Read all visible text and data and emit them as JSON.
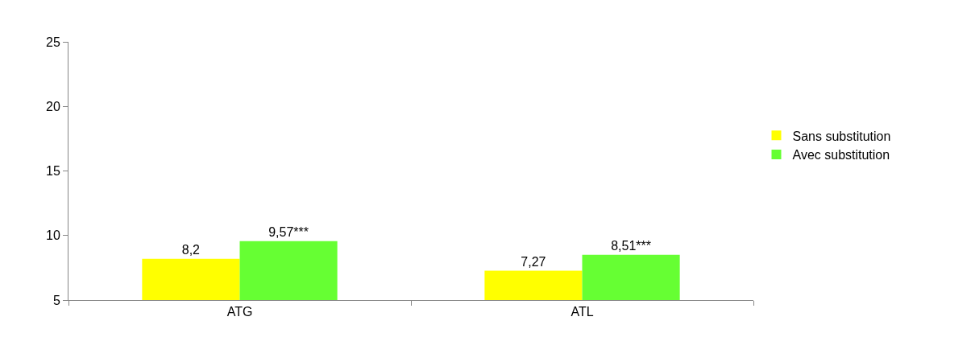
{
  "chart_data": {
    "type": "bar",
    "categories": [
      "ATG",
      "ATL"
    ],
    "series": [
      {
        "name": "Sans substitution",
        "color": "#ffff00",
        "values": [
          8.2,
          7.27
        ],
        "value_labels": [
          "8,2",
          "7,27"
        ]
      },
      {
        "name": "Avec substitution",
        "color": "#66ff33",
        "values": [
          9.57,
          8.51
        ],
        "value_labels": [
          "9,57***",
          "8,51***"
        ]
      }
    ],
    "ylim": [
      5,
      25
    ],
    "yticks": [
      5,
      10,
      15,
      20,
      25
    ],
    "legend": "right"
  }
}
